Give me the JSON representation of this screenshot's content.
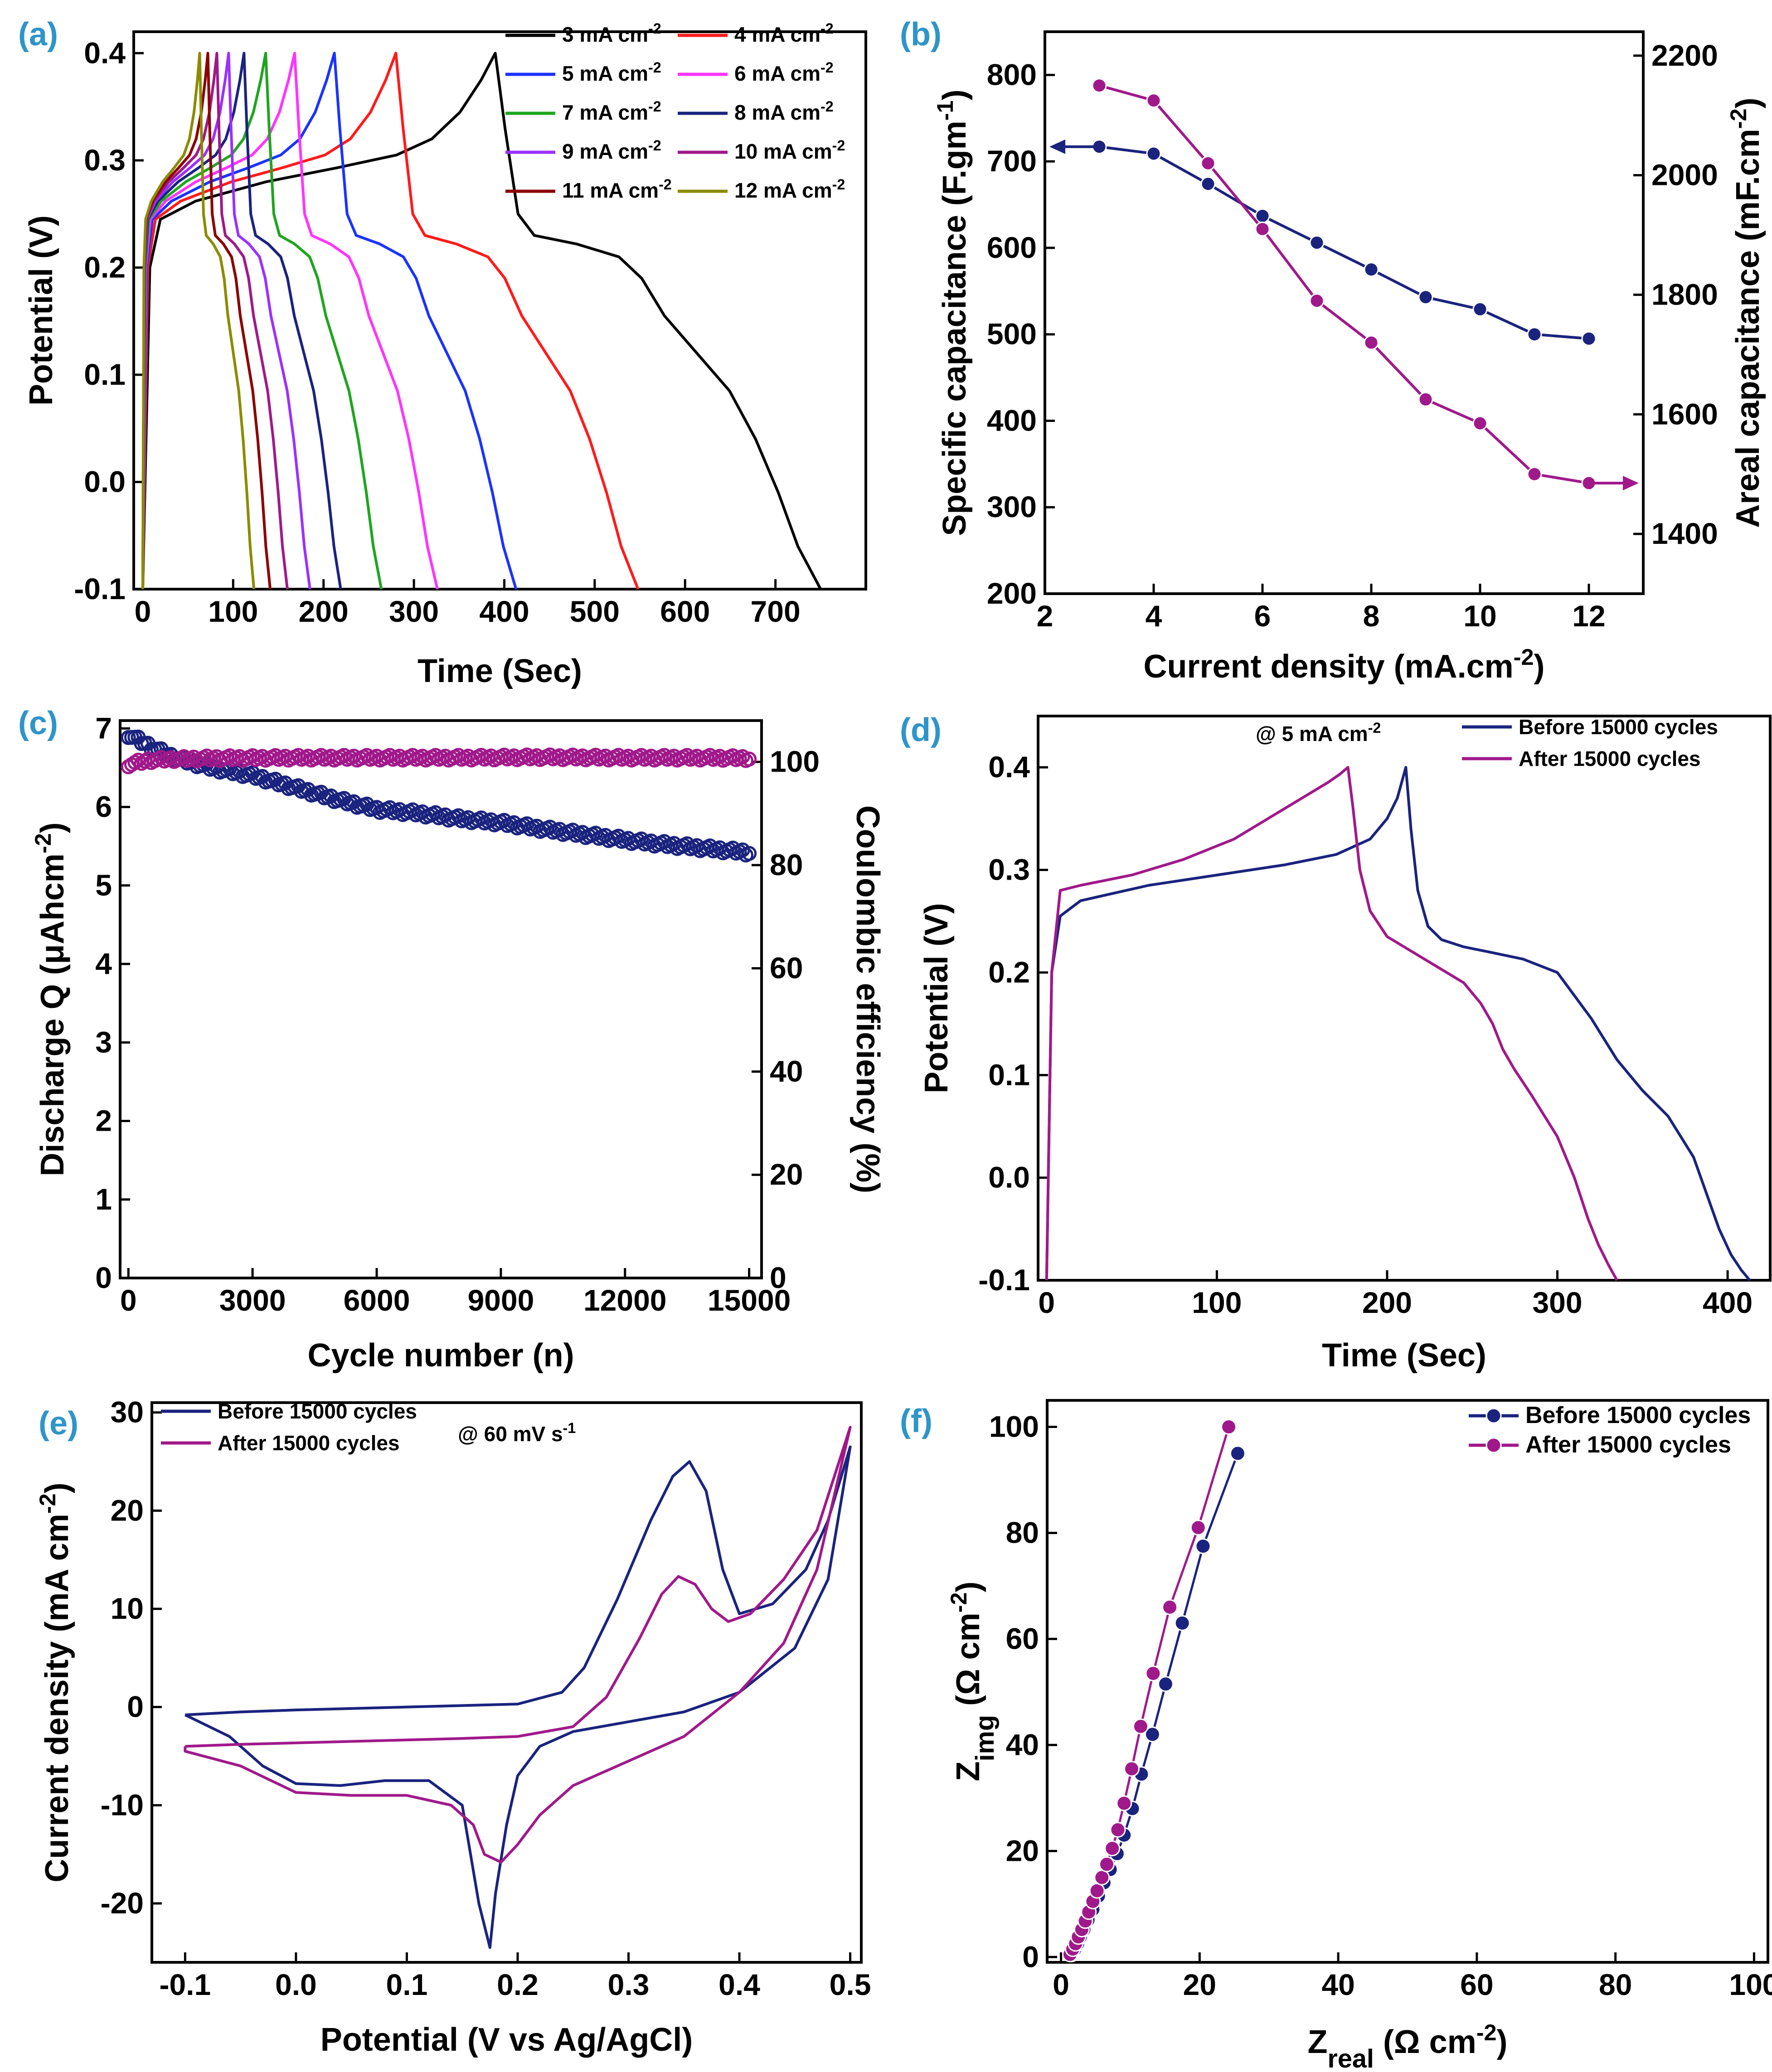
{
  "panels": {
    "a": "(a)",
    "b": "(b)",
    "c": "(c)",
    "d": "(d)",
    "e": "(e)",
    "f": "(f)"
  },
  "chart_data": [
    {
      "id": "a",
      "type": "line",
      "xlabel": "Time (Sec)",
      "ylabel": "Potential (V)",
      "xlim": [
        -10,
        800
      ],
      "ylim": [
        -0.1,
        0.42
      ],
      "xticks": [
        "0",
        "100",
        "200",
        "300",
        "400",
        "500",
        "600",
        "700"
      ],
      "yticks": [
        "-0.1",
        "0.0",
        "0.1",
        "0.2",
        "0.3",
        "0.4"
      ],
      "series": [
        {
          "name": "3 mA cm",
          "sup": "-2",
          "color": "#000000",
          "charge_end": 390,
          "discharge_end": 750
        },
        {
          "name": "4 mA cm",
          "sup": "-2",
          "color": "#ff1a1a",
          "charge_end": 280,
          "discharge_end": 548
        },
        {
          "name": "5 mA cm",
          "sup": "-2",
          "color": "#1a33ff",
          "charge_end": 212,
          "discharge_end": 413
        },
        {
          "name": "6 mA cm",
          "sup": "-2",
          "color": "#ff33ff",
          "charge_end": 168,
          "discharge_end": 326
        },
        {
          "name": "7 mA cm",
          "sup": "-2",
          "color": "#1fa51f",
          "charge_end": 136,
          "discharge_end": 264
        },
        {
          "name": "8 mA cm",
          "sup": "-2",
          "color": "#1a237e",
          "charge_end": 112,
          "discharge_end": 219
        },
        {
          "name": "9 mA cm",
          "sup": "-2",
          "color": "#9b30ff",
          "charge_end": 95,
          "discharge_end": 185
        },
        {
          "name": "10 mA cm",
          "sup": "-2",
          "color": "#a0198a",
          "charge_end": 82,
          "discharge_end": 160
        },
        {
          "name": "11 mA cm",
          "sup": "-2",
          "color": "#8b0000",
          "charge_end": 72,
          "discharge_end": 141
        },
        {
          "name": "12 mA cm",
          "sup": "-2",
          "color": "#8b8b00",
          "charge_end": 63,
          "discharge_end": 123
        }
      ]
    },
    {
      "id": "b",
      "type": "line",
      "xlabel": "Current density (mA.cm",
      "xlabel_sup": "-2",
      "xlabel_end": ")",
      "ylabel": "Specific capacitance (F.gm",
      "ylabel_sup": "-1",
      "ylabel_end": ")",
      "y2label": "Areal capacitance (mF.cm",
      "y2label_sup": "-2",
      "y2label_end": ")",
      "xlim": [
        2,
        13
      ],
      "ylim": [
        200,
        850
      ],
      "y2lim": [
        1300,
        2240
      ],
      "xticks": [
        "2",
        "4",
        "6",
        "8",
        "10",
        "12"
      ],
      "yticks": [
        "200",
        "300",
        "400",
        "500",
        "600",
        "700",
        "800"
      ],
      "y2ticks": [
        "1400",
        "1600",
        "1800",
        "2000",
        "2200"
      ],
      "x": [
        3,
        4,
        5,
        6,
        7,
        8,
        9,
        10,
        11,
        12
      ],
      "series": [
        {
          "name": "Specific capacitance",
          "axis": "left",
          "color": "#1a237e",
          "values": [
            717,
            709,
            674,
            637,
            606,
            575,
            543,
            529,
            500,
            495
          ]
        },
        {
          "name": "Areal capacitance",
          "axis": "right",
          "color": "#a0198a",
          "values": [
            2150,
            2125,
            2020,
            1910,
            1790,
            1720,
            1625,
            1585,
            1500,
            1485
          ]
        }
      ]
    },
    {
      "id": "c",
      "type": "scatter",
      "xlabel": "Cycle number (n)",
      "ylabel": "Discharge Q (μAhcm",
      "ylabel_sup": "-2",
      "ylabel_end": ")",
      "y2label": "Coulombic efficiency (%)",
      "xlim": [
        -200,
        15300
      ],
      "ylim": [
        0,
        7.1
      ],
      "y2lim": [
        0,
        108
      ],
      "xticks": [
        "0",
        "3000",
        "6000",
        "9000",
        "12000",
        "15000"
      ],
      "yticks": [
        "0",
        "1",
        "2",
        "3",
        "4",
        "5",
        "6",
        "7"
      ],
      "y2ticks": [
        "0",
        "20",
        "40",
        "60",
        "80",
        "100"
      ],
      "series": [
        {
          "name": "Discharge Q",
          "axis": "left",
          "color": "#1a237e",
          "x": [
            0,
            500,
            1000,
            1500,
            2000,
            3000,
            4000,
            5000,
            6000,
            7000,
            8000,
            9000,
            10000,
            11000,
            12000,
            13000,
            14000,
            15000
          ],
          "values": [
            6.92,
            6.78,
            6.65,
            6.57,
            6.5,
            6.4,
            6.25,
            6.1,
            5.97,
            5.92,
            5.85,
            5.8,
            5.72,
            5.65,
            5.58,
            5.52,
            5.47,
            5.42
          ]
        },
        {
          "name": "Coulombic efficiency",
          "axis": "right",
          "color": "#a0198a",
          "x": [
            0,
            500,
            1000,
            2000,
            4000,
            6000,
            8000,
            10000,
            12000,
            14000,
            15000
          ],
          "values": [
            99.5,
            100.3,
            100.5,
            100.7,
            100.8,
            100.8,
            100.8,
            100.9,
            100.8,
            100.8,
            100.7
          ]
        }
      ]
    },
    {
      "id": "d",
      "type": "line",
      "xlabel": "Time (Sec)",
      "ylabel": "Potential (V)",
      "xlim": [
        -5,
        425
      ],
      "ylim": [
        -0.1,
        0.45
      ],
      "xticks": [
        "0",
        "100",
        "200",
        "300",
        "400"
      ],
      "yticks": [
        "-0.1",
        "0.0",
        "0.1",
        "0.2",
        "0.3",
        "0.4"
      ],
      "annotation": "@ 5 mA cm",
      "annotation_sup": "-2",
      "series": [
        {
          "name": "Before 15000 cycles",
          "color": "#1a237e",
          "x": [
            0,
            3,
            8,
            20,
            60,
            100,
            140,
            170,
            190,
            200,
            206,
            211,
            214,
            218,
            224,
            232,
            245,
            260,
            280,
            300,
            320,
            335,
            350,
            365,
            380,
            395,
            402,
            408,
            413
          ],
          "values": [
            -0.1,
            0.2,
            0.255,
            0.27,
            0.285,
            0.295,
            0.305,
            0.315,
            0.33,
            0.35,
            0.37,
            0.4,
            0.34,
            0.28,
            0.245,
            0.232,
            0.225,
            0.22,
            0.213,
            0.2,
            0.155,
            0.115,
            0.085,
            0.06,
            0.02,
            -0.05,
            -0.075,
            -0.09,
            -0.1
          ]
        },
        {
          "name": "After 15000 cycles",
          "color": "#a0198a",
          "x": [
            0,
            3,
            8,
            20,
            50,
            80,
            110,
            130,
            150,
            165,
            172,
            177,
            180,
            184,
            190,
            200,
            215,
            230,
            245,
            255,
            262,
            268,
            275,
            285,
            300,
            310,
            318,
            324,
            330,
            335
          ],
          "values": [
            -0.1,
            0.2,
            0.28,
            0.285,
            0.295,
            0.31,
            0.33,
            0.35,
            0.37,
            0.385,
            0.393,
            0.4,
            0.36,
            0.3,
            0.26,
            0.235,
            0.22,
            0.205,
            0.19,
            0.17,
            0.15,
            0.125,
            0.105,
            0.08,
            0.04,
            0.0,
            -0.04,
            -0.065,
            -0.085,
            -0.1
          ]
        }
      ]
    },
    {
      "id": "e",
      "type": "line",
      "xlabel": "Potential (V vs Ag/AgCl)",
      "ylabel": "Current density (mA cm",
      "ylabel_sup": "-2",
      "ylabel_end": ")",
      "xlim": [
        -0.13,
        0.51
      ],
      "ylim": [
        -26,
        31
      ],
      "xticks": [
        "-0.1",
        "0.0",
        "0.1",
        "0.2",
        "0.3",
        "0.4",
        "0.5"
      ],
      "yticks": [
        "-20",
        "-10",
        "0",
        "10",
        "20",
        "30"
      ],
      "annotation": "@ 60 mV s",
      "annotation_sup": "-1",
      "series": [
        {
          "name": "Before 15000 cycles",
          "color": "#1a237e",
          "x": [
            -0.1,
            -0.05,
            0.0,
            0.1,
            0.2,
            0.24,
            0.26,
            0.29,
            0.32,
            0.34,
            0.355,
            0.37,
            0.385,
            0.4,
            0.43,
            0.46,
            0.48,
            0.5,
            0.48,
            0.45,
            0.4,
            0.35,
            0.3,
            0.25,
            0.22,
            0.2,
            0.19,
            0.18,
            0.175,
            0.165,
            0.15,
            0.12,
            0.08,
            0.04,
            0.0,
            -0.03,
            -0.06,
            -0.1
          ],
          "values": [
            -0.8,
            -0.5,
            -0.3,
            0.0,
            0.3,
            1.5,
            4.0,
            11.0,
            19.0,
            23.5,
            25.0,
            22.0,
            14.0,
            9.5,
            10.5,
            14.0,
            19.0,
            26.5,
            13.0,
            6.0,
            1.5,
            -0.5,
            -1.5,
            -2.5,
            -4.0,
            -7.0,
            -12.0,
            -19.0,
            -24.5,
            -20.0,
            -10.0,
            -7.5,
            -7.5,
            -8.0,
            -7.8,
            -6.0,
            -3.0,
            -0.8
          ]
        },
        {
          "name": "After 15000 cycles",
          "color": "#a0198a",
          "x": [
            -0.1,
            -0.05,
            0.05,
            0.15,
            0.2,
            0.25,
            0.28,
            0.31,
            0.33,
            0.345,
            0.36,
            0.375,
            0.39,
            0.41,
            0.44,
            0.47,
            0.5,
            0.47,
            0.44,
            0.4,
            0.35,
            0.3,
            0.25,
            0.22,
            0.2,
            0.185,
            0.17,
            0.16,
            0.14,
            0.1,
            0.05,
            0.0,
            -0.05,
            -0.1
          ],
          "values": [
            -4.0,
            -3.8,
            -3.5,
            -3.2,
            -3.0,
            -2.0,
            1.0,
            7.0,
            11.5,
            13.3,
            12.5,
            10.0,
            8.7,
            9.5,
            13.0,
            18.0,
            28.5,
            14.0,
            6.5,
            1.5,
            -3.0,
            -5.5,
            -8.0,
            -11.0,
            -14.0,
            -15.8,
            -15.0,
            -12.0,
            -10.0,
            -9.0,
            -9.0,
            -8.7,
            -6.0,
            -4.5
          ]
        }
      ]
    },
    {
      "id": "f",
      "type": "scatter",
      "xlabel": "Z",
      "xlabel_sub": "real",
      "xlabel_end": " (Ω cm",
      "xlabel_sup": "-2",
      "xlabel_close": ")",
      "ylabel": "Z",
      "ylabel_sub": "img",
      "ylabel_end": " (Ω cm",
      "ylabel_sup": "-2",
      "ylabel_close": ")",
      "xlim": [
        -2,
        102
      ],
      "ylim": [
        -1,
        105
      ],
      "xticks": [
        "0",
        "20",
        "40",
        "60",
        "80",
        "100"
      ],
      "yticks": [
        "0",
        "20",
        "40",
        "60",
        "80",
        "100"
      ],
      "series": [
        {
          "name": "Before 15000 cycles",
          "color": "#1a237e",
          "x": [
            1.5,
            2.0,
            2.4,
            2.8,
            3.3,
            3.9,
            4.6,
            5.4,
            6.2,
            7.1,
            8.1,
            9.1,
            10.3,
            11.6,
            13.2,
            15.1,
            17.5,
            20.5,
            25.5
          ],
          "values": [
            0.5,
            1.5,
            2.5,
            3.8,
            5.2,
            7.0,
            9.0,
            11.5,
            14.0,
            16.5,
            19.5,
            23.0,
            28.0,
            34.5,
            42.0,
            51.5,
            63.0,
            77.5,
            95.0
          ]
        },
        {
          "name": "After 15000 cycles",
          "color": "#a0198a",
          "x": [
            1.3,
            1.7,
            2.1,
            2.5,
            3.0,
            3.5,
            4.0,
            4.6,
            5.2,
            5.9,
            6.6,
            7.4,
            8.2,
            9.1,
            10.2,
            11.5,
            13.3,
            15.7,
            19.8,
            24.2
          ],
          "values": [
            0.5,
            1.5,
            2.5,
            3.8,
            5.2,
            6.8,
            8.5,
            10.5,
            12.5,
            15.0,
            17.5,
            20.5,
            24.0,
            29.0,
            35.5,
            43.5,
            53.5,
            66.0,
            81.0,
            100.0
          ]
        }
      ]
    }
  ]
}
